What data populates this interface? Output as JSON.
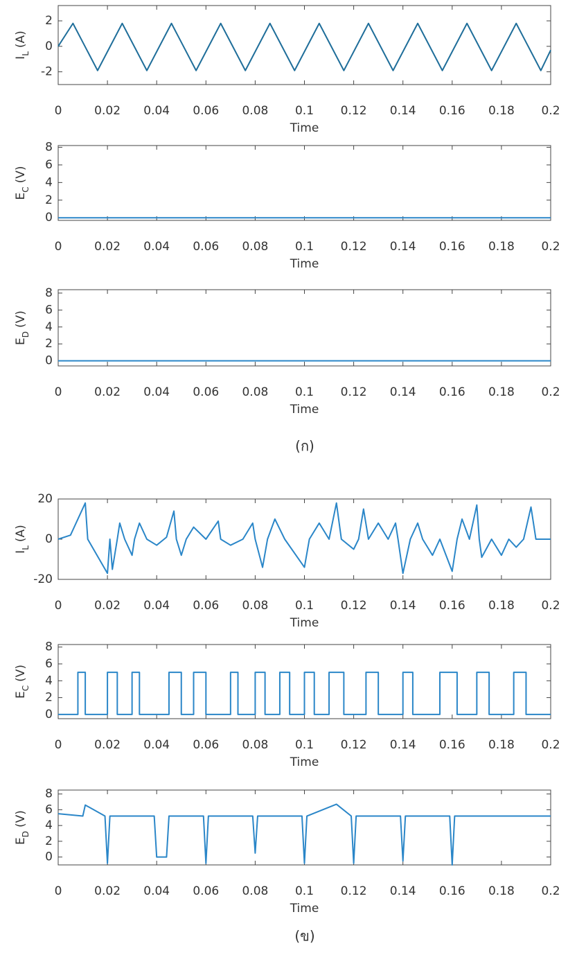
{
  "chart_data": [
    {
      "type": "line",
      "xlabel": "Time",
      "ylabel": {
        "symbol": "I",
        "subscript": "L",
        "unit": "(A)"
      },
      "color": "#1f6e9a",
      "xlim": [
        0,
        0.2
      ],
      "xticks": [
        0,
        0.02,
        0.04,
        0.06,
        0.08,
        0.1,
        0.12,
        0.14,
        0.16,
        0.18,
        0.2
      ],
      "ylim": [
        -3,
        3.2
      ],
      "yticks": [
        -2,
        0,
        2
      ],
      "x": [
        0,
        0.006,
        0.016,
        0.026,
        0.036,
        0.046,
        0.056,
        0.066,
        0.076,
        0.086,
        0.096,
        0.106,
        0.116,
        0.126,
        0.136,
        0.146,
        0.156,
        0.166,
        0.176,
        0.186,
        0.196,
        0.2
      ],
      "values": [
        0,
        1.8,
        -1.9,
        1.8,
        -1.9,
        1.8,
        -1.9,
        1.8,
        -1.9,
        1.8,
        -1.9,
        1.8,
        -1.9,
        1.8,
        -1.9,
        1.8,
        -1.9,
        1.8,
        -1.9,
        1.8,
        -1.9,
        -0.3
      ]
    },
    {
      "type": "line",
      "xlabel": "Time",
      "ylabel": {
        "symbol": "E",
        "subscript": "C",
        "unit": "(V)"
      },
      "color": "#2a86c8",
      "xlim": [
        0,
        0.2
      ],
      "xticks": [
        0,
        0.02,
        0.04,
        0.06,
        0.08,
        0.1,
        0.12,
        0.14,
        0.16,
        0.18,
        0.2
      ],
      "ylim": [
        -0.3,
        8.2
      ],
      "yticks": [
        0,
        2,
        4,
        6,
        8
      ],
      "x": [
        0,
        0.2
      ],
      "values": [
        0,
        0
      ]
    },
    {
      "type": "line",
      "xlabel": "Time",
      "ylabel": {
        "symbol": "E",
        "subscript": "D",
        "unit": "(V)"
      },
      "color": "#2a86c8",
      "xlim": [
        0,
        0.2
      ],
      "xticks": [
        0,
        0.02,
        0.04,
        0.06,
        0.08,
        0.1,
        0.12,
        0.14,
        0.16,
        0.18,
        0.2
      ],
      "ylim": [
        -0.6,
        8.4
      ],
      "yticks": [
        0,
        2,
        4,
        6,
        8
      ],
      "x": [
        0,
        0.2
      ],
      "values": [
        0,
        0
      ]
    },
    {
      "type": "line",
      "xlabel": "Time",
      "ylabel": {
        "symbol": "I",
        "subscript": "L",
        "unit": "(A)"
      },
      "color": "#2a86c8",
      "xlim": [
        0,
        0.2
      ],
      "xticks": [
        0,
        0.02,
        0.04,
        0.06,
        0.08,
        0.1,
        0.12,
        0.14,
        0.16,
        0.18,
        0.2
      ],
      "ylim": [
        -20,
        20
      ],
      "yticks": [
        -20,
        0,
        20
      ],
      "x": [
        0,
        0.005,
        0.011,
        0.012,
        0.02,
        0.021,
        0.022,
        0.024,
        0.025,
        0.027,
        0.03,
        0.031,
        0.033,
        0.036,
        0.04,
        0.044,
        0.047,
        0.048,
        0.05,
        0.052,
        0.055,
        0.06,
        0.065,
        0.066,
        0.07,
        0.075,
        0.079,
        0.08,
        0.083,
        0.085,
        0.088,
        0.092,
        0.1,
        0.102,
        0.106,
        0.11,
        0.113,
        0.115,
        0.12,
        0.122,
        0.124,
        0.126,
        0.13,
        0.134,
        0.137,
        0.138,
        0.14,
        0.143,
        0.146,
        0.148,
        0.152,
        0.155,
        0.16,
        0.162,
        0.164,
        0.167,
        0.17,
        0.171,
        0.172,
        0.176,
        0.18,
        0.183,
        0.186,
        0.189,
        0.192,
        0.194,
        0.2
      ],
      "values": [
        0,
        2,
        18,
        0,
        -17,
        0,
        -15,
        0,
        8,
        0,
        -8,
        0,
        8,
        0,
        -3,
        1,
        14,
        0,
        -8,
        0,
        6,
        0,
        9,
        0,
        -3,
        0,
        8,
        0,
        -14,
        0,
        10,
        0,
        -14,
        0,
        8,
        0,
        18,
        0,
        -5,
        0,
        15,
        0,
        8,
        0,
        8,
        0,
        -17,
        0,
        8,
        0,
        -8,
        0,
        -16,
        0,
        10,
        0,
        17,
        0,
        -9,
        0,
        -8,
        0,
        -4,
        0,
        16,
        0,
        0
      ]
    },
    {
      "type": "line",
      "xlabel": "Time",
      "ylabel": {
        "symbol": "E",
        "subscript": "C",
        "unit": "(V)"
      },
      "color": "#2a86c8",
      "xlim": [
        0,
        0.2
      ],
      "xticks": [
        0,
        0.02,
        0.04,
        0.06,
        0.08,
        0.1,
        0.12,
        0.14,
        0.16,
        0.18,
        0.2
      ],
      "ylim": [
        -0.5,
        8.3
      ],
      "yticks": [
        0,
        2,
        4,
        6,
        8
      ],
      "x": [
        0,
        0.008,
        0.008,
        0.011,
        0.011,
        0.02,
        0.02,
        0.024,
        0.024,
        0.03,
        0.03,
        0.033,
        0.033,
        0.045,
        0.045,
        0.05,
        0.05,
        0.055,
        0.055,
        0.06,
        0.06,
        0.07,
        0.07,
        0.073,
        0.073,
        0.08,
        0.08,
        0.084,
        0.084,
        0.09,
        0.09,
        0.094,
        0.094,
        0.1,
        0.1,
        0.104,
        0.104,
        0.11,
        0.11,
        0.116,
        0.116,
        0.125,
        0.125,
        0.13,
        0.13,
        0.14,
        0.14,
        0.144,
        0.144,
        0.155,
        0.155,
        0.162,
        0.162,
        0.17,
        0.17,
        0.175,
        0.175,
        0.185,
        0.185,
        0.19,
        0.19,
        0.2
      ],
      "values": [
        0,
        0,
        5,
        5,
        0,
        0,
        5,
        5,
        0,
        0,
        5,
        5,
        0,
        0,
        5,
        5,
        0,
        0,
        5,
        5,
        0,
        0,
        5,
        5,
        0,
        0,
        5,
        5,
        0,
        0,
        5,
        5,
        0,
        0,
        5,
        5,
        0,
        0,
        5,
        5,
        0,
        0,
        5,
        5,
        0,
        0,
        5,
        5,
        0,
        0,
        5,
        5,
        0,
        0,
        5,
        5,
        0,
        0,
        5,
        5,
        0,
        0
      ]
    },
    {
      "type": "line",
      "xlabel": "Time",
      "ylabel": {
        "symbol": "E",
        "subscript": "D",
        "unit": "(V)"
      },
      "color": "#2a86c8",
      "xlim": [
        0,
        0.2
      ],
      "xticks": [
        0,
        0.02,
        0.04,
        0.06,
        0.08,
        0.1,
        0.12,
        0.14,
        0.16,
        0.18,
        0.2
      ],
      "ylim": [
        -1,
        8.5
      ],
      "yticks": [
        0,
        2,
        4,
        6,
        8
      ],
      "x": [
        0,
        0.01,
        0.011,
        0.019,
        0.02,
        0.021,
        0.03,
        0.039,
        0.04,
        0.044,
        0.045,
        0.059,
        0.06,
        0.061,
        0.079,
        0.08,
        0.081,
        0.099,
        0.1,
        0.101,
        0.113,
        0.119,
        0.12,
        0.121,
        0.139,
        0.14,
        0.141,
        0.159,
        0.16,
        0.161,
        0.17,
        0.2
      ],
      "values": [
        5.5,
        5.2,
        6.6,
        5.2,
        -0.8,
        5.2,
        5.2,
        5.2,
        0,
        0,
        5.2,
        5.2,
        -0.8,
        5.2,
        5.2,
        0.5,
        5.2,
        5.2,
        -0.8,
        5.2,
        6.7,
        5.2,
        -0.8,
        5.2,
        5.2,
        -0.5,
        5.2,
        5.2,
        -1,
        5.2,
        5.2,
        5.2
      ]
    }
  ],
  "captions": [
    "(ก)",
    "(ข)"
  ]
}
